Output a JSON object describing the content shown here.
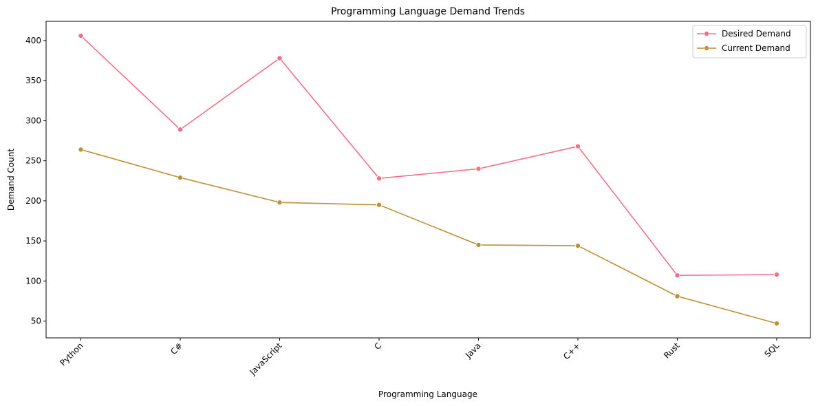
{
  "chart_data": {
    "type": "line",
    "title": "Programming Language Demand Trends",
    "xlabel": "Programming Language",
    "ylabel": "Demand Count",
    "categories": [
      "Python",
      "C#",
      "JavaScript",
      "C",
      "Java",
      "C++",
      "Rust",
      "SQL"
    ],
    "series": [
      {
        "name": "Desired Demand",
        "color": "#f07088",
        "marker": "circle",
        "values": [
          406,
          289,
          378,
          228,
          240,
          268,
          107,
          108
        ]
      },
      {
        "name": "Current Demand",
        "color": "#bb9236",
        "marker": "circle",
        "values": [
          264,
          229,
          198,
          195,
          145,
          144,
          81,
          47
        ]
      }
    ],
    "yticks": [
      50,
      100,
      150,
      200,
      250,
      300,
      350,
      400
    ],
    "ylim": [
      29,
      424
    ],
    "grid": false,
    "legend_position": "top-right",
    "xtick_rotation": 45
  }
}
